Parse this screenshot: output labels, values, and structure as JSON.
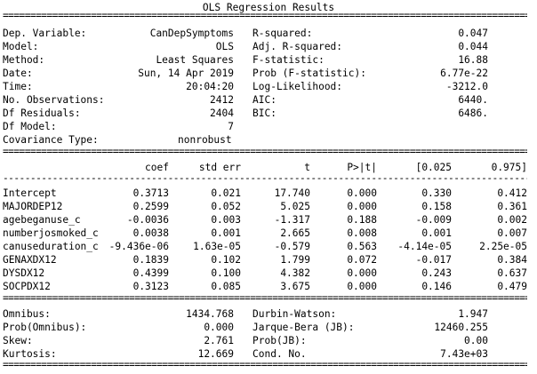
{
  "title": "OLS Regression Results",
  "rules": {
    "eq": "===============================================================================================================",
    "dash": "---------------------------------------------------------------------------------------------------------------"
  },
  "summary": {
    "left": [
      {
        "label": "Dep. Variable:",
        "value": "CanDepSymptoms"
      },
      {
        "label": "Model:",
        "value": "OLS"
      },
      {
        "label": "Method:",
        "value": "Least Squares"
      },
      {
        "label": "Date:",
        "value": "Sun, 14 Apr 2019"
      },
      {
        "label": "Time:",
        "value": "20:04:20"
      },
      {
        "label": "No. Observations:",
        "value": "2412"
      },
      {
        "label": "Df Residuals:",
        "value": "2404"
      },
      {
        "label": "Df Model:",
        "value": "7"
      },
      {
        "label": "Covariance Type:",
        "value": "nonrobust"
      }
    ],
    "right": [
      {
        "label": "R-squared:",
        "value": "0.047"
      },
      {
        "label": "Adj. R-squared:",
        "value": "0.044"
      },
      {
        "label": "F-statistic:",
        "value": "16.88"
      },
      {
        "label": "Prob (F-statistic):",
        "value": "6.77e-22"
      },
      {
        "label": "Log-Likelihood:",
        "value": "-3212.0"
      },
      {
        "label": "AIC:",
        "value": "6440."
      },
      {
        "label": "BIC:",
        "value": "6486."
      }
    ]
  },
  "coef_table": {
    "headers": [
      "coef",
      "std err",
      "t",
      "P>|t|",
      "[0.025",
      "0.975]"
    ],
    "rows": [
      {
        "name": "Intercept",
        "coef": "0.3713",
        "std_err": "0.021",
        "t": "17.740",
        "p": "0.000",
        "lo": "0.330",
        "hi": "0.412"
      },
      {
        "name": "MAJORDEP12",
        "coef": "0.2599",
        "std_err": "0.052",
        "t": "5.025",
        "p": "0.000",
        "lo": "0.158",
        "hi": "0.361"
      },
      {
        "name": "agebeganuse_c",
        "coef": "-0.0036",
        "std_err": "0.003",
        "t": "-1.317",
        "p": "0.188",
        "lo": "-0.009",
        "hi": "0.002"
      },
      {
        "name": "numberjosmoked_c",
        "coef": "0.0038",
        "std_err": "0.001",
        "t": "2.665",
        "p": "0.008",
        "lo": "0.001",
        "hi": "0.007"
      },
      {
        "name": "canuseduration_c",
        "coef": "-9.436e-06",
        "std_err": "1.63e-05",
        "t": "-0.579",
        "p": "0.563",
        "lo": "-4.14e-05",
        "hi": "2.25e-05"
      },
      {
        "name": "GENAXDX12",
        "coef": "0.1839",
        "std_err": "0.102",
        "t": "1.799",
        "p": "0.072",
        "lo": "-0.017",
        "hi": "0.384"
      },
      {
        "name": "DYSDX12",
        "coef": "0.4399",
        "std_err": "0.100",
        "t": "4.382",
        "p": "0.000",
        "lo": "0.243",
        "hi": "0.637"
      },
      {
        "name": "SOCPDX12",
        "coef": "0.3123",
        "std_err": "0.085",
        "t": "3.675",
        "p": "0.000",
        "lo": "0.146",
        "hi": "0.479"
      }
    ]
  },
  "diagnostics": {
    "left": [
      {
        "label": "Omnibus:",
        "value": "1434.768"
      },
      {
        "label": "Prob(Omnibus):",
        "value": "0.000"
      },
      {
        "label": "Skew:",
        "value": "2.761"
      },
      {
        "label": "Kurtosis:",
        "value": "12.669"
      }
    ],
    "right": [
      {
        "label": "Durbin-Watson:",
        "value": "1.947"
      },
      {
        "label": "Jarque-Bera (JB):",
        "value": "12460.255"
      },
      {
        "label": "Prob(JB):",
        "value": "0.00"
      },
      {
        "label": "Cond. No.",
        "value": "7.43e+03"
      }
    ]
  }
}
